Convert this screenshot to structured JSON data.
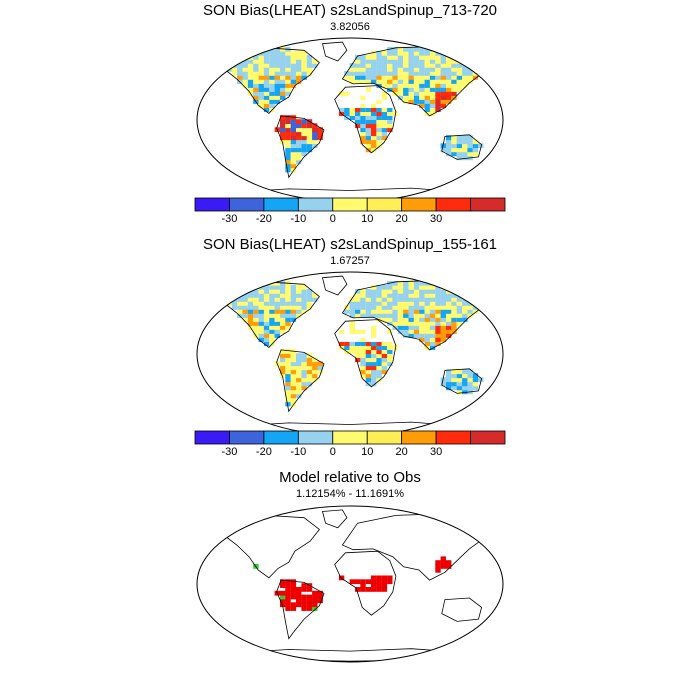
{
  "panels": [
    {
      "title": "SON Bias(LHEAT) s2sLandSpinup_713-720",
      "subtitle": "3.82056",
      "map_variant": "bias_high"
    },
    {
      "title": "SON Bias(LHEAT) s2sLandSpinup_155-161",
      "subtitle": "1.67257",
      "map_variant": "bias_low"
    },
    {
      "title": "Model relative to Obs",
      "subtitle": "1.12154% - 11.1691%",
      "map_variant": "relative"
    }
  ],
  "colorbar": {
    "labels": [
      "-30",
      "-20",
      "-10",
      "0",
      "10",
      "20",
      "30"
    ],
    "colors": [
      "#3a1bf5",
      "#3e64dc",
      "#14a5f5",
      "#96d2ee",
      "#fffa6e",
      "#ffee55",
      "#ff9d09",
      "#ff2b0a",
      "#d52b2b"
    ]
  },
  "relative_colors": {
    "red": "#ee0000",
    "green": "#33cc33"
  }
}
